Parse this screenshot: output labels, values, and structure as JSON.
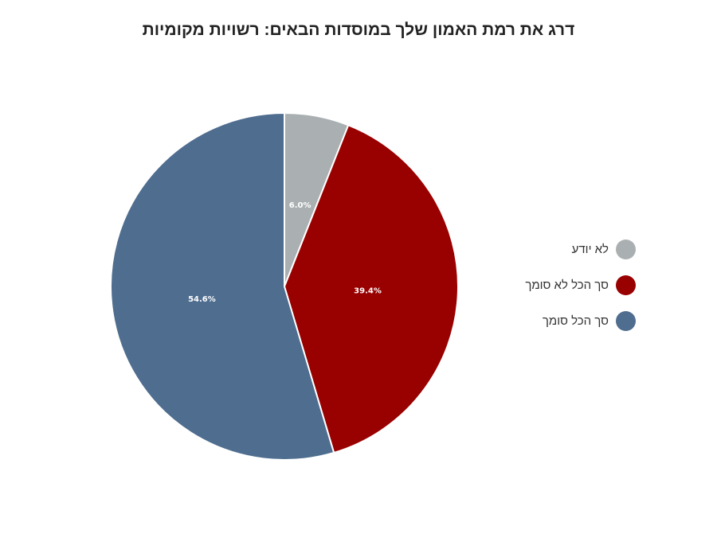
{
  "chart_data": {
    "type": "pie",
    "title": "דרג את רמת האמון שלך במוסדות הבאים: רשויות מקומיות",
    "slices": [
      {
        "name": "לא יודע",
        "value": 6.0,
        "label": "6.0%",
        "color": "#aab0b1"
      },
      {
        "name": "סך הכל לא סומך",
        "value": 39.4,
        "label": "39.4%",
        "color": "#990000"
      },
      {
        "name": "סך הכל סומך",
        "value": 54.6,
        "label": "54.6%",
        "color": "#4f6d8f"
      }
    ],
    "start_angle": "12 o'clock",
    "direction": "clockwise",
    "legend_position": "right"
  }
}
